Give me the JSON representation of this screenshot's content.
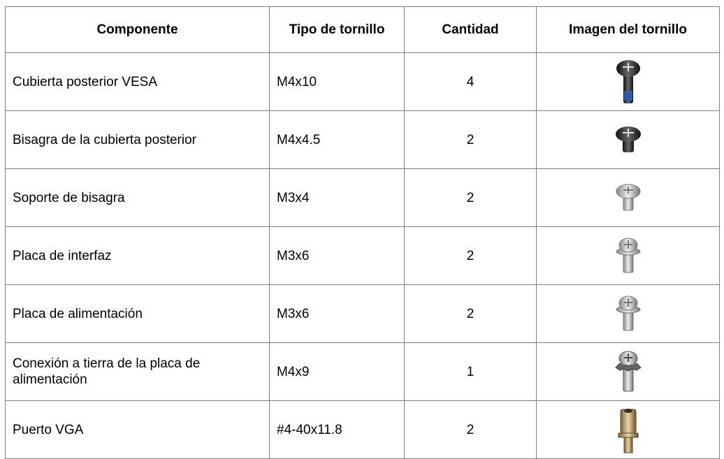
{
  "table": {
    "header": [
      "Componente",
      "Tipo de tornillo",
      "Cantidad",
      "Imagen del tornillo"
    ],
    "rows": [
      [
        "Cubierta posterior VESA",
        "M4x10",
        4
      ],
      [
        "Bisagra de la cubierta posterior",
        "M4x4.5",
        2
      ],
      [
        "Soporte de bisagra",
        "M3x4",
        2
      ],
      [
        "Placa de interfaz",
        "M3x6",
        2
      ],
      [
        "Placa de alimentación",
        "M3x6",
        2
      ],
      [
        "Conexión a tierra de la placa de alimentación",
        "M4x9",
        1
      ],
      [
        "Puerto VGA",
        "#4-40x11.8",
        2
      ]
    ]
  }
}
